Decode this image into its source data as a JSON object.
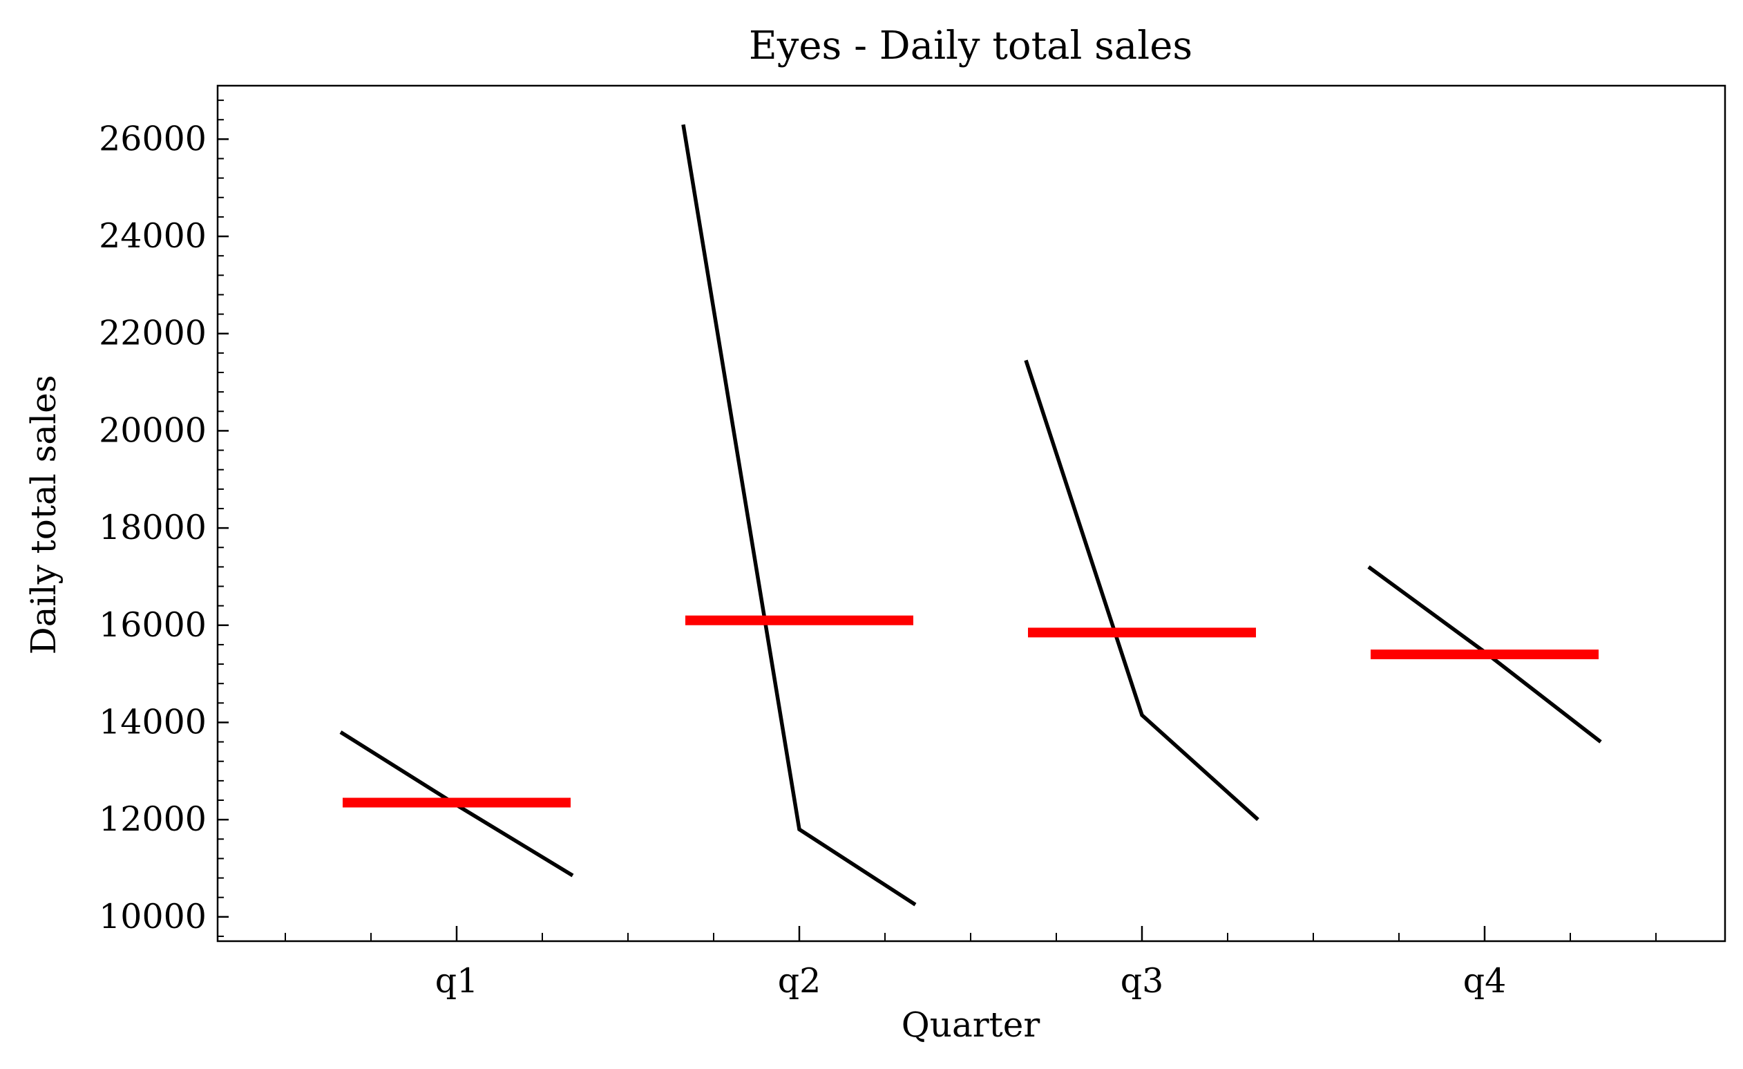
{
  "chart_data": {
    "type": "line",
    "title": "Eyes - Daily total sales",
    "xlabel": "Quarter",
    "ylabel": "Daily total sales",
    "categories": [
      "q1",
      "q2",
      "q3",
      "q4"
    ],
    "yticks": [
      "10000",
      "12000",
      "14000",
      "16000",
      "18000",
      "20000",
      "22000",
      "24000",
      "26000"
    ],
    "ylim": [
      9500,
      27100
    ],
    "grid": false,
    "seasonal_lines": [
      {
        "quarter": "q1",
        "values": [
          13800,
          12300,
          10850
        ]
      },
      {
        "quarter": "q2",
        "values": [
          26300,
          11800,
          10250
        ]
      },
      {
        "quarter": "q3",
        "values": [
          21450,
          14150,
          12000
        ]
      },
      {
        "quarter": "q4",
        "values": [
          17200,
          15450,
          13600
        ]
      }
    ],
    "means": [
      {
        "quarter": "q1",
        "value": 12350
      },
      {
        "quarter": "q2",
        "value": 16100
      },
      {
        "quarter": "q3",
        "value": 15850
      },
      {
        "quarter": "q4",
        "value": 15400
      }
    ],
    "colors": {
      "line": "#000000",
      "mean": "#ff0000"
    }
  }
}
